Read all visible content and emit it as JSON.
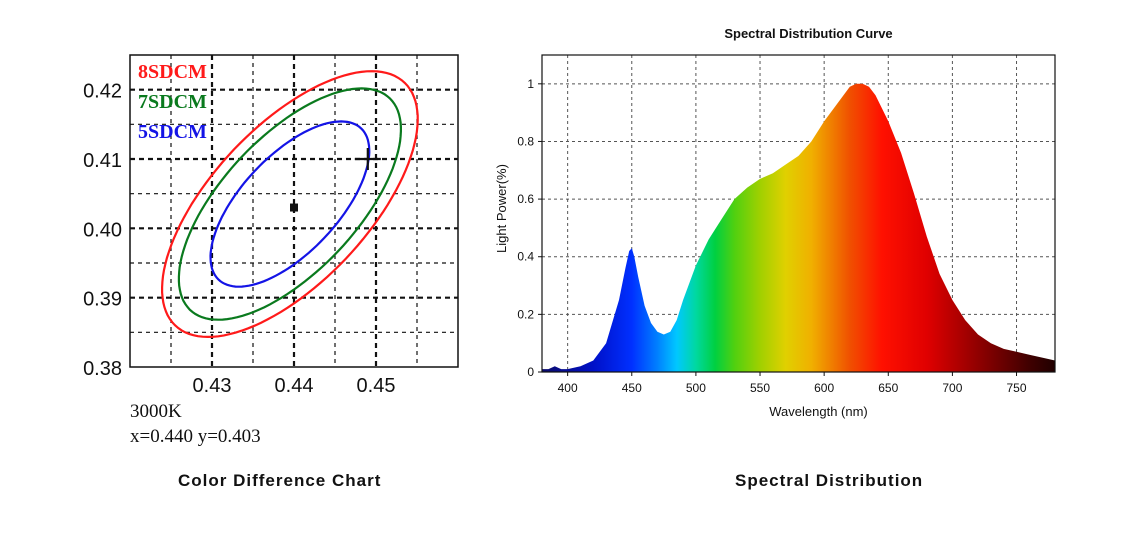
{
  "captions": {
    "left": "Color Difference Chart",
    "right": "Spectral Distribution"
  },
  "chart_data": [
    {
      "type": "scatter",
      "title": "",
      "xlabel": "",
      "ylabel": "",
      "xlim": [
        0.42,
        0.46
      ],
      "ylim": [
        0.38,
        0.425
      ],
      "x_ticks": [
        0.43,
        0.44,
        0.45
      ],
      "x_tick_labels": [
        "0.43",
        "0.44",
        "0.45"
      ],
      "y_ticks": [
        0.38,
        0.39,
        0.4,
        0.41,
        0.42
      ],
      "y_tick_labels": [
        "0.38",
        "0.39",
        "0.40",
        "0.41",
        "0.42"
      ],
      "grid": true,
      "legend_position": "top-left",
      "series": [
        {
          "name": "8SDCM",
          "color": "#ff1a1a",
          "ellipse": {
            "center": [
              0.4395,
              0.4035
            ],
            "semi_major": 0.0225,
            "semi_minor": 0.0102,
            "angle_deg": 54
          }
        },
        {
          "name": "7SDCM",
          "color": "#0a7a1e",
          "ellipse": {
            "center": [
              0.4395,
              0.4035
            ],
            "semi_major": 0.0196,
            "semi_minor": 0.0088,
            "angle_deg": 54
          }
        },
        {
          "name": "5SDCM",
          "color": "#1414e6",
          "ellipse": {
            "center": [
              0.4395,
              0.4035
            ],
            "semi_major": 0.014,
            "semi_minor": 0.0063,
            "angle_deg": 54
          }
        }
      ],
      "points": [
        {
          "x": 0.44,
          "y": 0.403,
          "marker": "square"
        },
        {
          "x": 0.449,
          "y": 0.41,
          "marker": "cross"
        }
      ],
      "annotations": {
        "cct": "3000K",
        "coords": "x=0.440  y=0.403"
      }
    },
    {
      "type": "area",
      "title": "Spectral Distribution Curve",
      "xlabel": "Wavelength  (nm)",
      "ylabel": "Light Power(%)",
      "xlim": [
        380,
        780
      ],
      "ylim": [
        0,
        1.1
      ],
      "x_ticks": [
        400,
        450,
        500,
        550,
        600,
        650,
        700,
        750
      ],
      "y_ticks": [
        0,
        0.2,
        0.4,
        0.6,
        0.8,
        1
      ],
      "grid": true,
      "x": [
        380,
        385,
        390,
        395,
        400,
        410,
        420,
        430,
        440,
        445,
        448,
        450,
        452,
        455,
        460,
        465,
        470,
        475,
        480,
        485,
        490,
        500,
        510,
        520,
        530,
        540,
        550,
        560,
        570,
        580,
        590,
        600,
        610,
        620,
        625,
        630,
        635,
        640,
        650,
        660,
        670,
        680,
        690,
        700,
        710,
        720,
        730,
        740,
        750,
        760,
        770,
        780
      ],
      "values": [
        0.01,
        0.01,
        0.02,
        0.01,
        0.01,
        0.02,
        0.04,
        0.1,
        0.25,
        0.36,
        0.42,
        0.43,
        0.4,
        0.33,
        0.23,
        0.17,
        0.14,
        0.13,
        0.14,
        0.18,
        0.25,
        0.37,
        0.46,
        0.53,
        0.6,
        0.64,
        0.67,
        0.69,
        0.72,
        0.75,
        0.8,
        0.87,
        0.93,
        0.99,
        1.0,
        1.0,
        0.99,
        0.96,
        0.87,
        0.76,
        0.62,
        0.47,
        0.34,
        0.25,
        0.18,
        0.13,
        0.1,
        0.08,
        0.07,
        0.06,
        0.05,
        0.04
      ]
    }
  ]
}
